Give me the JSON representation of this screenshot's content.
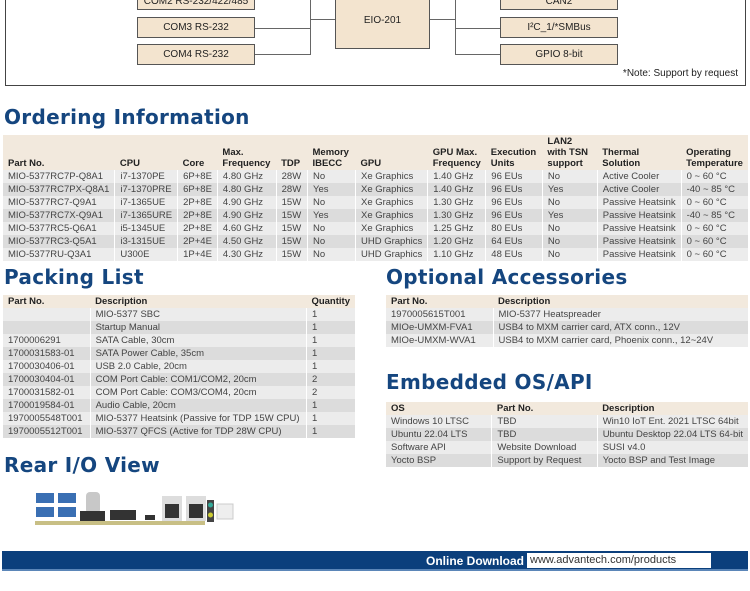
{
  "diagram": {
    "left_boxes": [
      "COM2 RS-232/422/485",
      "COM3 RS-232",
      "COM4 RS-232"
    ],
    "center": "EIO-201",
    "right_boxes": [
      "CAN2",
      "I²C_1/*SMBus",
      "GPIO 8-bit"
    ],
    "note": "*Note: Support by request"
  },
  "ordering": {
    "title": "Ordering Information",
    "headers": [
      "Part No.",
      "CPU",
      "Core",
      "Max. Frequency",
      "TDP",
      "Memory IBECC",
      "GPU",
      "GPU Max. Frequency",
      "Execution Units",
      "LAN2 with TSN support",
      "Thermal Solution",
      "Operating Temperature"
    ],
    "rows": [
      [
        "MIO-5377RC7P-Q8A1",
        "i7-1370PE",
        "6P+8E",
        "4.80 GHz",
        "28W",
        "No",
        "Xe Graphics",
        "1.40 GHz",
        "96 EUs",
        "No",
        "Active Cooler",
        "0 ~ 60 °C"
      ],
      [
        "MIO-5377RC7PX-Q8A1",
        "i7-1370PRE",
        "6P+8E",
        "4.80 GHz",
        "28W",
        "Yes",
        "Xe Graphics",
        "1.40 GHz",
        "96 EUs",
        "Yes",
        "Active Cooler",
        "-40 ~ 85 °C"
      ],
      [
        "MIO-5377RC7-Q9A1",
        "i7-1365UE",
        "2P+8E",
        "4.90 GHz",
        "15W",
        "No",
        "Xe Graphics",
        "1.30 GHz",
        "96 EUs",
        "No",
        "Passive Heatsink",
        "0 ~ 60 °C"
      ],
      [
        "MIO-5377RC7X-Q9A1",
        "i7-1365URE",
        "2P+8E",
        "4.90 GHz",
        "15W",
        "Yes",
        "Xe Graphics",
        "1.30 GHz",
        "96 EUs",
        "Yes",
        "Passive Heatsink",
        "-40 ~ 85 °C"
      ],
      [
        "MIO-5377RC5-Q6A1",
        "i5-1345UE",
        "2P+8E",
        "4.60 GHz",
        "15W",
        "No",
        "Xe Graphics",
        "1.25 GHz",
        "80 EUs",
        "No",
        "Passive Heatsink",
        "0 ~ 60 °C"
      ],
      [
        "MIO-5377RC3-Q5A1",
        "i3-1315UE",
        "2P+4E",
        "4.50 GHz",
        "15W",
        "No",
        "UHD Graphics",
        "1.20 GHz",
        "64 EUs",
        "No",
        "Passive Heatsink",
        "0 ~ 60 °C"
      ],
      [
        "MIO-5377RU-Q3A1",
        "U300E",
        "1P+4E",
        "4.30 GHz",
        "15W",
        "No",
        "UHD Graphics",
        "1.10 GHz",
        "48 EUs",
        "No",
        "Passive Heatsink",
        "0 ~ 60 °C"
      ]
    ]
  },
  "packing": {
    "title": "Packing List",
    "headers": [
      "Part No.",
      "Description",
      "Quantity"
    ],
    "rows": [
      [
        "",
        "MIO-5377 SBC",
        "1"
      ],
      [
        "",
        "Startup Manual",
        "1"
      ],
      [
        "1700006291",
        "SATA Cable, 30cm",
        "1"
      ],
      [
        "1700031583-01",
        "SATA Power Cable, 35cm",
        "1"
      ],
      [
        "1700030406-01",
        "USB 2.0 Cable, 20cm",
        "1"
      ],
      [
        "1700030404-01",
        "COM Port Cable: COM1/COM2, 20cm",
        "2"
      ],
      [
        "1700031582-01",
        "COM Port Cable: COM3/COM4, 20cm",
        "2"
      ],
      [
        "1700019584-01",
        "Audio Cable, 20cm",
        "1"
      ],
      [
        "1970005548T001",
        "MIO-5377 Heatsink (Passive for TDP 15W CPU)",
        "1"
      ],
      [
        "1970005512T001",
        "MIO-5377 QFCS (Active for TDP 28W CPU)",
        "1"
      ]
    ]
  },
  "accessories": {
    "title": "Optional Accessories",
    "headers": [
      "Part No.",
      "Description"
    ],
    "rows": [
      [
        "1970005615T001",
        "MIO-5377 Heatspreader"
      ],
      [
        "MIOe-UMXM-FVA1",
        "USB4 to MXM carrier card, ATX conn., 12V"
      ],
      [
        "MIOe-UMXM-WVA1",
        "USB4 to MXM carrier card, Phoenix conn., 12~24V"
      ]
    ]
  },
  "os": {
    "title": "Embedded OS/API",
    "headers": [
      "OS",
      "Part No.",
      "Description"
    ],
    "rows": [
      [
        "Windows 10 LTSC",
        "TBD",
        "Win10 IoT Ent. 2021 LTSC 64bit"
      ],
      [
        "Ubuntu 22.04 LTS",
        "TBD",
        "Ubuntu Desktop 22.04 LTS 64-bit"
      ],
      [
        "Software API",
        "Website Download",
        "SUSI v4.0"
      ],
      [
        "Yocto BSP",
        "Support by Request",
        "Yocto BSP and Test Image"
      ]
    ]
  },
  "rear_io": {
    "title": "Rear I/O View"
  },
  "footer": {
    "label": "Online Download",
    "url": "www.advantech.com/products",
    "bar_color": "#0b3f7c"
  }
}
